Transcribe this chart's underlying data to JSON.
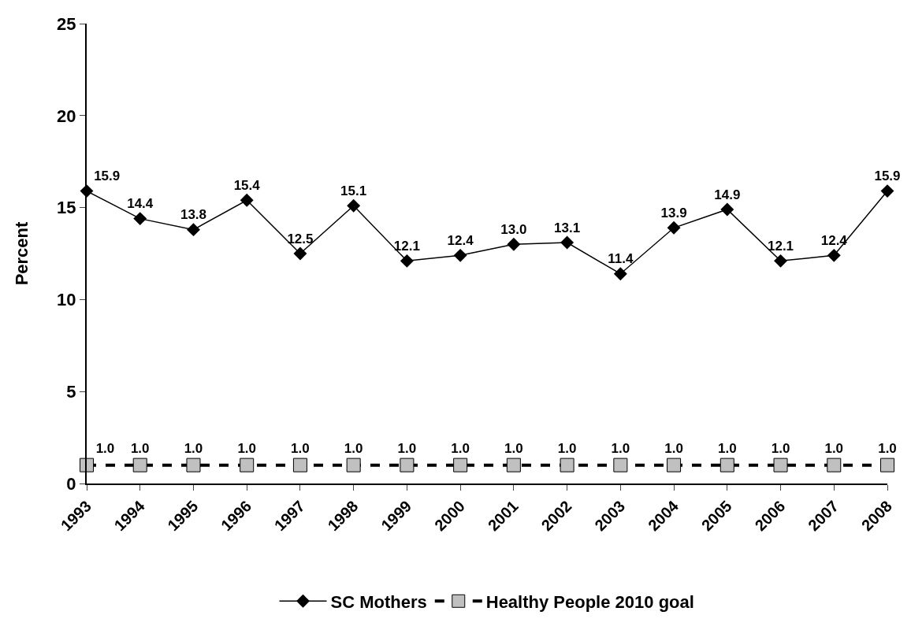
{
  "chart_data": {
    "type": "line",
    "ylabel": "Percent",
    "categories": [
      "1993",
      "1994",
      "1995",
      "1996",
      "1997",
      "1998",
      "1999",
      "2000",
      "2001",
      "2002",
      "2003",
      "2004",
      "2005",
      "2006",
      "2007",
      "2008"
    ],
    "series": [
      {
        "name": "SC Mothers",
        "color": "#000000",
        "marker": "diamond",
        "line_style": "solid",
        "values": [
          15.9,
          14.4,
          13.8,
          15.4,
          12.5,
          15.1,
          12.1,
          12.4,
          13.0,
          13.1,
          11.4,
          13.9,
          14.9,
          12.1,
          12.4,
          15.9
        ],
        "value_labels": [
          "15.9",
          "14.4",
          "13.8",
          "15.4",
          "12.5",
          "15.1",
          "12.1",
          "12.4",
          "13.0",
          "13.1",
          "11.4",
          "13.9",
          "14.9",
          "12.1",
          "12.4",
          "15.9"
        ]
      },
      {
        "name": "Healthy People 2010 goal",
        "color": "#c0c0c0",
        "marker": "square",
        "line_style": "dashed",
        "values": [
          1.0,
          1.0,
          1.0,
          1.0,
          1.0,
          1.0,
          1.0,
          1.0,
          1.0,
          1.0,
          1.0,
          1.0,
          1.0,
          1.0,
          1.0,
          1.0
        ],
        "value_labels": [
          "1.0",
          "1.0",
          "1.0",
          "1.0",
          "1.0",
          "1.0",
          "1.0",
          "1.0",
          "1.0",
          "1.0",
          "1.0",
          "1.0",
          "1.0",
          "1.0",
          "1.0",
          "1.0"
        ]
      }
    ],
    "ylim": [
      0,
      25
    ],
    "yticks": [
      0,
      5,
      10,
      15,
      20,
      25
    ],
    "grid": false,
    "legend": "bottom"
  }
}
